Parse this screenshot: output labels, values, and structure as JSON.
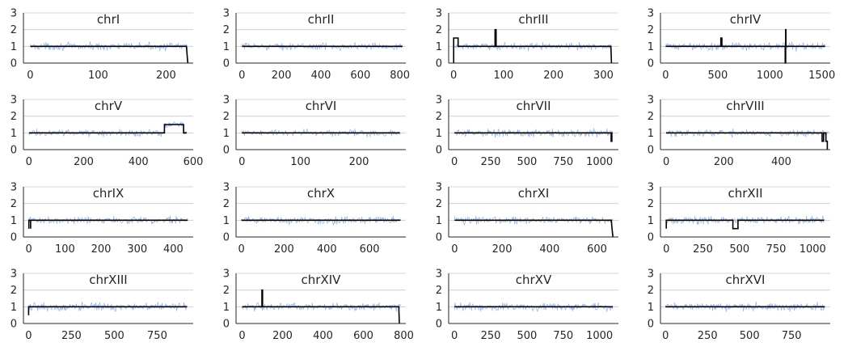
{
  "figure": {
    "background": "#ffffff",
    "colors": {
      "coverage": "#8fb0ee",
      "segments": "#000000",
      "grid": "#c8c8c8",
      "axis": "#262626",
      "text": "#262626"
    }
  },
  "chart_data": [
    {
      "type": "line",
      "title": "chrI",
      "xlim": [
        -10,
        240
      ],
      "ylim": [
        0,
        3
      ],
      "xticks": [
        0,
        100,
        200
      ],
      "yticks": [
        0,
        1,
        2,
        3
      ],
      "grid": true,
      "series": [
        {
          "kind": "coverage_noise",
          "x_range": [
            0,
            232
          ],
          "baseline": 1.0,
          "amplitude": 0.13
        },
        {
          "kind": "segments",
          "points": [
            [
              0,
              1
            ],
            [
              230,
              1
            ],
            [
              232,
              0
            ]
          ]
        }
      ]
    },
    {
      "type": "line",
      "title": "chrII",
      "xlim": [
        -30,
        830
      ],
      "ylim": [
        0,
        3
      ],
      "xticks": [
        0,
        200,
        400,
        600,
        800
      ],
      "yticks": [
        0,
        1,
        2,
        3
      ],
      "grid": true,
      "series": [
        {
          "kind": "coverage_noise",
          "x_range": [
            0,
            813
          ],
          "baseline": 1.0,
          "amplitude": 0.12
        },
        {
          "kind": "segments",
          "points": [
            [
              0,
              1
            ],
            [
              813,
              1
            ]
          ]
        }
      ]
    },
    {
      "type": "line",
      "title": "chrIII",
      "xlim": [
        -10,
        330
      ],
      "ylim": [
        0,
        3
      ],
      "xticks": [
        0,
        100,
        200,
        300
      ],
      "yticks": [
        0,
        1,
        2,
        3
      ],
      "grid": true,
      "series": [
        {
          "kind": "coverage_noise",
          "x_range": [
            0,
            316
          ],
          "baseline": 1.0,
          "amplitude": 0.12
        },
        {
          "kind": "segments",
          "points": [
            [
              0,
              0
            ],
            [
              0,
              1.5
            ],
            [
              9,
              1.5
            ],
            [
              9,
              1
            ],
            [
              83,
              1
            ],
            [
              83,
              2
            ],
            [
              85,
              2
            ],
            [
              85,
              1
            ],
            [
              315,
              1
            ],
            [
              316,
              0
            ]
          ]
        }
      ]
    },
    {
      "type": "line",
      "title": "chrIV",
      "xlim": [
        -50,
        1580
      ],
      "ylim": [
        0,
        3
      ],
      "xticks": [
        0,
        500,
        1000,
        1500
      ],
      "yticks": [
        0,
        1,
        2,
        3
      ],
      "grid": true,
      "series": [
        {
          "kind": "coverage_noise",
          "x_range": [
            0,
            1531
          ],
          "baseline": 1.0,
          "amplitude": 0.14
        },
        {
          "kind": "segments",
          "points": [
            [
              0,
              1
            ],
            [
              530,
              1
            ],
            [
              530,
              1.5
            ],
            [
              540,
              1.5
            ],
            [
              540,
              1
            ],
            [
              1148,
              1
            ],
            [
              1148,
              0
            ],
            [
              1152,
              0
            ],
            [
              1152,
              2
            ],
            [
              1155,
              2
            ],
            [
              1155,
              1
            ],
            [
              1531,
              1
            ]
          ]
        }
      ]
    },
    {
      "type": "line",
      "title": "chrV",
      "xlim": [
        -20,
        600
      ],
      "ylim": [
        0,
        3
      ],
      "xticks": [
        0,
        200,
        400,
        600
      ],
      "yticks": [
        0,
        1,
        2,
        3
      ],
      "grid": true,
      "series": [
        {
          "kind": "coverage_noise",
          "x_range": [
            0,
            576
          ],
          "baseline": 1.0,
          "amplitude": 0.12,
          "raised": [
            495,
            565,
            1.5
          ]
        },
        {
          "kind": "segments",
          "points": [
            [
              0,
              1
            ],
            [
              495,
              1
            ],
            [
              495,
              1.5
            ],
            [
              565,
              1.5
            ],
            [
              565,
              1
            ],
            [
              576,
              1
            ]
          ]
        }
      ]
    },
    {
      "type": "line",
      "title": "chrVI",
      "xlim": [
        -10,
        280
      ],
      "ylim": [
        0,
        3
      ],
      "xticks": [
        0,
        100,
        200
      ],
      "yticks": [
        0,
        1,
        2,
        3
      ],
      "grid": true,
      "series": [
        {
          "kind": "coverage_noise",
          "x_range": [
            0,
            270
          ],
          "baseline": 1.0,
          "amplitude": 0.12
        },
        {
          "kind": "segments",
          "points": [
            [
              0,
              1
            ],
            [
              270,
              1
            ]
          ]
        }
      ]
    },
    {
      "type": "line",
      "title": "chrVII",
      "xlim": [
        -40,
        1130
      ],
      "ylim": [
        0,
        3
      ],
      "xticks": [
        0,
        250,
        500,
        750,
        1000
      ],
      "yticks": [
        0,
        1,
        2,
        3
      ],
      "grid": true,
      "series": [
        {
          "kind": "coverage_noise",
          "x_range": [
            0,
            1090
          ],
          "baseline": 1.0,
          "amplitude": 0.14
        },
        {
          "kind": "segments",
          "points": [
            [
              0,
              1
            ],
            [
              1080,
              1
            ],
            [
              1080,
              0.5
            ],
            [
              1085,
              0.5
            ],
            [
              1085,
              1
            ],
            [
              1090,
              1
            ]
          ]
        }
      ]
    },
    {
      "type": "line",
      "title": "chrVIII",
      "xlim": [
        -20,
        570
      ],
      "ylim": [
        0,
        3
      ],
      "xticks": [
        0,
        200,
        400
      ],
      "yticks": [
        0,
        1,
        2,
        3
      ],
      "grid": true,
      "series": [
        {
          "kind": "coverage_noise",
          "x_range": [
            0,
            563
          ],
          "baseline": 1.0,
          "amplitude": 0.13
        },
        {
          "kind": "segments",
          "points": [
            [
              0,
              1
            ],
            [
              542,
              1
            ],
            [
              542,
              0.5
            ],
            [
              547,
              0.5
            ],
            [
              547,
              1
            ],
            [
              555,
              1
            ],
            [
              555,
              0.5
            ],
            [
              560,
              0.5
            ],
            [
              560,
              0
            ]
          ]
        }
      ]
    },
    {
      "type": "line",
      "title": "chrIX",
      "xlim": [
        -15,
        455
      ],
      "ylim": [
        0,
        3
      ],
      "xticks": [
        0,
        100,
        200,
        300,
        400
      ],
      "yticks": [
        0,
        1,
        2,
        3
      ],
      "grid": true,
      "series": [
        {
          "kind": "coverage_noise",
          "x_range": [
            0,
            440
          ],
          "baseline": 1.0,
          "amplitude": 0.12
        },
        {
          "kind": "segments",
          "points": [
            [
              0,
              0.5
            ],
            [
              0,
              1
            ],
            [
              5,
              1
            ],
            [
              5,
              0.5
            ],
            [
              5,
              1
            ],
            [
              440,
              1
            ]
          ]
        }
      ]
    },
    {
      "type": "line",
      "title": "chrX",
      "xlim": [
        -25,
        770
      ],
      "ylim": [
        0,
        3
      ],
      "xticks": [
        0,
        200,
        400,
        600
      ],
      "yticks": [
        0,
        1,
        2,
        3
      ],
      "grid": true,
      "series": [
        {
          "kind": "coverage_noise",
          "x_range": [
            0,
            745
          ],
          "baseline": 1.0,
          "amplitude": 0.14
        },
        {
          "kind": "segments",
          "points": [
            [
              0,
              1
            ],
            [
              745,
              1
            ]
          ]
        }
      ]
    },
    {
      "type": "line",
      "title": "chrXI",
      "xlim": [
        -25,
        690
      ],
      "ylim": [
        0,
        3
      ],
      "xticks": [
        0,
        200,
        400,
        600
      ],
      "yticks": [
        0,
        1,
        2,
        3
      ],
      "grid": true,
      "series": [
        {
          "kind": "coverage_noise",
          "x_range": [
            0,
            667
          ],
          "baseline": 1.0,
          "amplitude": 0.13
        },
        {
          "kind": "segments",
          "points": [
            [
              0,
              1
            ],
            [
              660,
              1
            ],
            [
              663,
              0.5
            ],
            [
              667,
              0
            ]
          ]
        }
      ]
    },
    {
      "type": "line",
      "title": "chrXII",
      "xlim": [
        -40,
        1120
      ],
      "ylim": [
        0,
        3
      ],
      "xticks": [
        0,
        250,
        500,
        750,
        1000
      ],
      "yticks": [
        0,
        1,
        2,
        3
      ],
      "grid": true,
      "series": [
        {
          "kind": "coverage_noise",
          "x_range": [
            0,
            1078
          ],
          "baseline": 1.0,
          "amplitude": 0.14
        },
        {
          "kind": "segments",
          "points": [
            [
              0,
              0.5
            ],
            [
              0,
              1
            ],
            [
              455,
              1
            ],
            [
              455,
              0.5
            ],
            [
              490,
              0.5
            ],
            [
              490,
              1
            ],
            [
              1078,
              1
            ]
          ]
        }
      ]
    },
    {
      "type": "line",
      "title": "chrXIII",
      "xlim": [
        -30,
        960
      ],
      "ylim": [
        0,
        3
      ],
      "xticks": [
        0,
        250,
        500,
        750
      ],
      "yticks": [
        0,
        1,
        2,
        3
      ],
      "grid": true,
      "series": [
        {
          "kind": "coverage_noise",
          "x_range": [
            0,
            924
          ],
          "baseline": 1.0,
          "amplitude": 0.14
        },
        {
          "kind": "segments",
          "points": [
            [
              0,
              0.5
            ],
            [
              0,
              1
            ],
            [
              924,
              1
            ]
          ]
        }
      ]
    },
    {
      "type": "line",
      "title": "chrXIV",
      "xlim": [
        -30,
        810
      ],
      "ylim": [
        0,
        3
      ],
      "xticks": [
        0,
        200,
        400,
        600,
        800
      ],
      "yticks": [
        0,
        1,
        2,
        3
      ],
      "grid": true,
      "series": [
        {
          "kind": "coverage_noise",
          "x_range": [
            0,
            784
          ],
          "baseline": 1.0,
          "amplitude": 0.13
        },
        {
          "kind": "segments",
          "points": [
            [
              0,
              1
            ],
            [
              98,
              1
            ],
            [
              98,
              2
            ],
            [
              101,
              2
            ],
            [
              101,
              1
            ],
            [
              775,
              1
            ],
            [
              778,
              0
            ]
          ]
        }
      ]
    },
    {
      "type": "line",
      "title": "chrXV",
      "xlim": [
        -40,
        1130
      ],
      "ylim": [
        0,
        3
      ],
      "xticks": [
        0,
        250,
        500,
        750,
        1000
      ],
      "yticks": [
        0,
        1,
        2,
        3
      ],
      "grid": true,
      "series": [
        {
          "kind": "coverage_noise",
          "x_range": [
            0,
            1091
          ],
          "baseline": 1.0,
          "amplitude": 0.14
        },
        {
          "kind": "segments",
          "points": [
            [
              0,
              1
            ],
            [
              1091,
              1
            ]
          ]
        }
      ]
    },
    {
      "type": "line",
      "title": "chrXVI",
      "xlim": [
        -30,
        980
      ],
      "ylim": [
        0,
        3
      ],
      "xticks": [
        0,
        250,
        500,
        750
      ],
      "yticks": [
        0,
        1,
        2,
        3
      ],
      "grid": true,
      "series": [
        {
          "kind": "coverage_noise",
          "x_range": [
            0,
            948
          ],
          "baseline": 1.0,
          "amplitude": 0.14
        },
        {
          "kind": "segments",
          "points": [
            [
              0,
              1
            ],
            [
              948,
              1
            ]
          ]
        }
      ]
    }
  ]
}
